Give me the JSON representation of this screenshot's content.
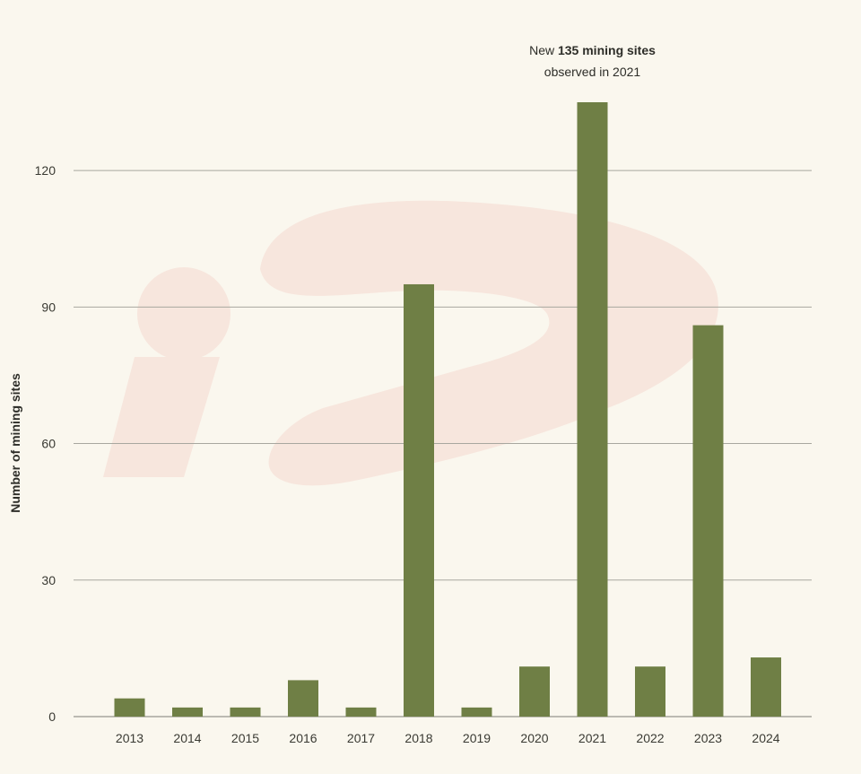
{
  "colors": {
    "background": "#faf7ee",
    "bar": "#6f7f45",
    "watermark": "#f6e8dc"
  },
  "watermark": "iS",
  "chart_data": {
    "type": "bar",
    "ylabel": "Number of mining sites",
    "xlabel": "",
    "categories": [
      "2013",
      "2014",
      "2015",
      "2016",
      "2017",
      "2018",
      "2019",
      "2020",
      "2021",
      "2022",
      "2023",
      "2024"
    ],
    "values": [
      4,
      2,
      2,
      8,
      2,
      95,
      2,
      11,
      135,
      11,
      86,
      13
    ],
    "ylim": [
      0,
      135
    ],
    "yticks": [
      "0",
      "30",
      "60",
      "90",
      "120"
    ],
    "grid": true,
    "annotation": {
      "prefix": "New ",
      "bold": "135 mining sites",
      "line2": "observed in 2021",
      "category": "2021"
    }
  }
}
